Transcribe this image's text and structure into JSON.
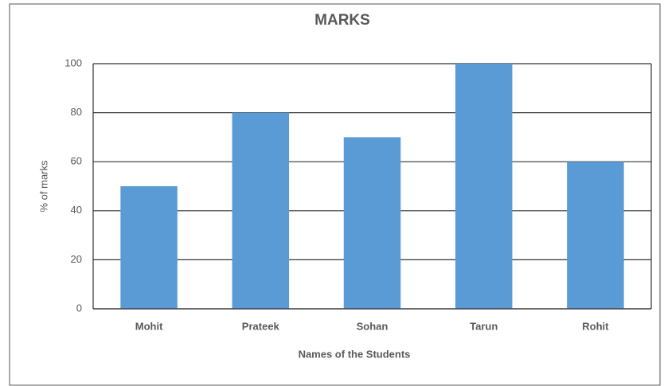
{
  "chart_data": {
    "type": "bar",
    "title": "MARKS",
    "categories": [
      "Mohit",
      "Prateek",
      "Sohan",
      "Tarun",
      "Rohit"
    ],
    "values": [
      50,
      80,
      70,
      100,
      60
    ],
    "color": "#5b9bd5",
    "x_label": "Names of the Students",
    "y_label": "% of marks",
    "ylim": [
      0,
      100
    ],
    "yticks": [
      0,
      20,
      40,
      60,
      80,
      100
    ],
    "grid": true
  }
}
